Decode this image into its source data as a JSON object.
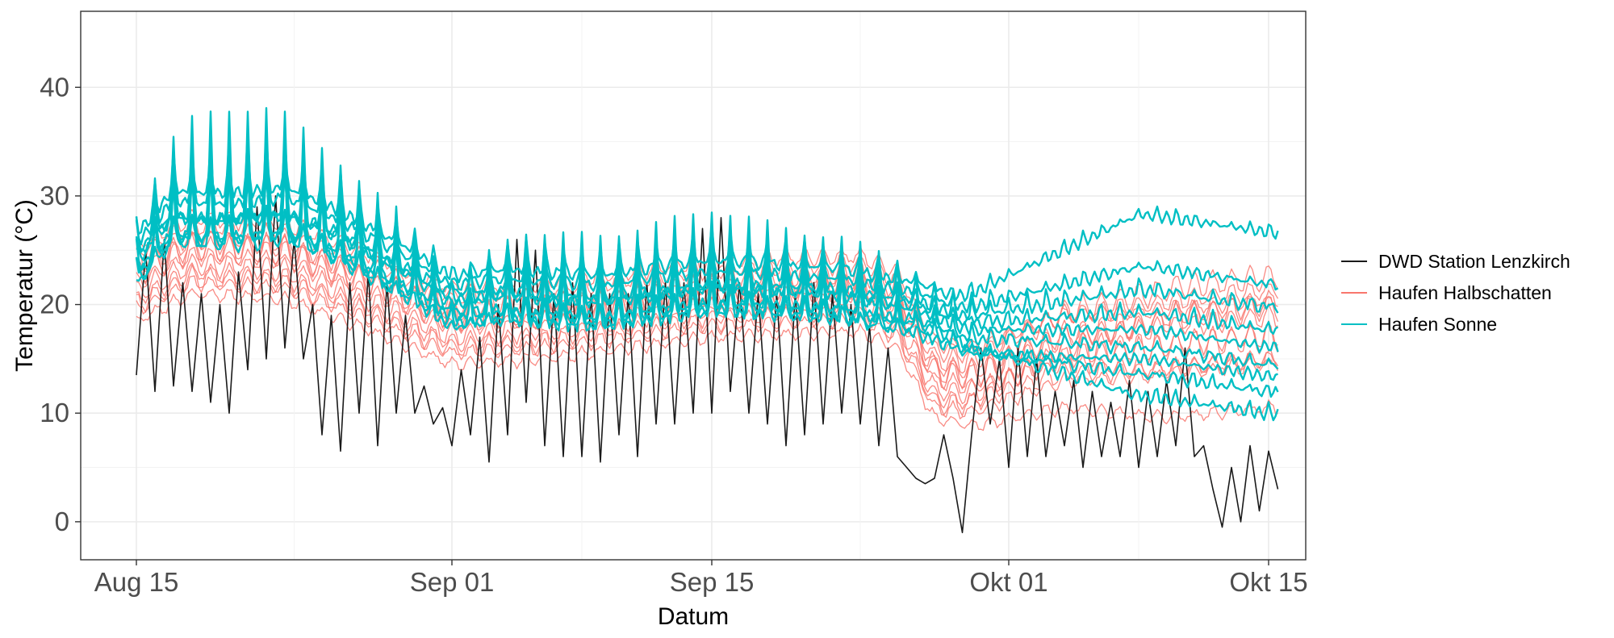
{
  "chart_data": {
    "type": "line",
    "xlabel": "Datum",
    "ylabel": "Temperatur (°C)",
    "x_ticks": [
      {
        "label": "Aug 15",
        "day": 0
      },
      {
        "label": "Sep 01",
        "day": 17
      },
      {
        "label": "Sep 15",
        "day": 31
      },
      {
        "label": "Okt 01",
        "day": 47
      },
      {
        "label": "Okt 15",
        "day": 61
      }
    ],
    "y_ticks": [
      0,
      10,
      20,
      30,
      40
    ],
    "xlim": [
      "Aug 12",
      "Okt 17"
    ],
    "ylim": [
      -3.5,
      47
    ],
    "grid": true,
    "legend_position": "right",
    "colors": {
      "station": "#1a1a1a",
      "halbschatten": "#f8766d",
      "sonne": "#00bfc4"
    },
    "series": [
      {
        "name": "DWD Station Lenzkirch",
        "group": "station",
        "values": [
          [
            0.0,
            13.5
          ],
          [
            0.5,
            25
          ],
          [
            1.0,
            12
          ],
          [
            1.5,
            26
          ],
          [
            2.0,
            12.5
          ],
          [
            2.5,
            22
          ],
          [
            3.0,
            12
          ],
          [
            3.5,
            21
          ],
          [
            4.0,
            11
          ],
          [
            4.5,
            20
          ],
          [
            5.0,
            10
          ],
          [
            5.5,
            23
          ],
          [
            6.0,
            14
          ],
          [
            6.5,
            29
          ],
          [
            7.0,
            15
          ],
          [
            7.5,
            30
          ],
          [
            8.0,
            16
          ],
          [
            8.5,
            26
          ],
          [
            9.0,
            15
          ],
          [
            9.5,
            20
          ],
          [
            10.0,
            8
          ],
          [
            10.5,
            19
          ],
          [
            11.0,
            6.5
          ],
          [
            11.5,
            22
          ],
          [
            12.0,
            10
          ],
          [
            12.5,
            23
          ],
          [
            13.0,
            7
          ],
          [
            13.5,
            22
          ],
          [
            14.0,
            10
          ],
          [
            14.5,
            19
          ],
          [
            15.0,
            10
          ],
          [
            15.5,
            12.5
          ],
          [
            16.0,
            9
          ],
          [
            16.5,
            10.5
          ],
          [
            17.0,
            7
          ],
          [
            17.5,
            14
          ],
          [
            18.0,
            8
          ],
          [
            18.5,
            17
          ],
          [
            19.0,
            5.5
          ],
          [
            19.5,
            20
          ],
          [
            20.0,
            8
          ],
          [
            20.5,
            26
          ],
          [
            21.0,
            11
          ],
          [
            21.5,
            25
          ],
          [
            22.0,
            7
          ],
          [
            22.5,
            21
          ],
          [
            23.0,
            6
          ],
          [
            23.5,
            22
          ],
          [
            24.0,
            6
          ],
          [
            24.5,
            21
          ],
          [
            25.0,
            5.5
          ],
          [
            25.5,
            21
          ],
          [
            26.0,
            8
          ],
          [
            26.5,
            21
          ],
          [
            27.0,
            6
          ],
          [
            27.5,
            22
          ],
          [
            28.0,
            9
          ],
          [
            28.5,
            22
          ],
          [
            29.0,
            9
          ],
          [
            29.5,
            22
          ],
          [
            30.0,
            10
          ],
          [
            30.5,
            27
          ],
          [
            31.0,
            10
          ],
          [
            31.5,
            28
          ],
          [
            32.0,
            12
          ],
          [
            32.5,
            22
          ],
          [
            33.0,
            10
          ],
          [
            33.5,
            21
          ],
          [
            34.0,
            9
          ],
          [
            34.5,
            21
          ],
          [
            35.0,
            7
          ],
          [
            35.5,
            21
          ],
          [
            36.0,
            8
          ],
          [
            36.5,
            22
          ],
          [
            37.0,
            9
          ],
          [
            37.5,
            21
          ],
          [
            38.0,
            10
          ],
          [
            38.5,
            20
          ],
          [
            39.0,
            9
          ],
          [
            39.5,
            18
          ],
          [
            40.0,
            7
          ],
          [
            40.5,
            16
          ],
          [
            41.0,
            6
          ],
          [
            41.5,
            5
          ],
          [
            42.0,
            4
          ],
          [
            42.5,
            3.5
          ],
          [
            43.0,
            4
          ],
          [
            43.5,
            8
          ],
          [
            44.0,
            4
          ],
          [
            44.5,
            -1
          ],
          [
            45.0,
            8
          ],
          [
            45.5,
            16
          ],
          [
            46.0,
            9
          ],
          [
            46.5,
            15
          ],
          [
            47.0,
            5
          ],
          [
            47.5,
            16
          ],
          [
            48.0,
            6
          ],
          [
            48.5,
            15
          ],
          [
            49.0,
            6
          ],
          [
            49.5,
            12
          ],
          [
            50.0,
            7
          ],
          [
            50.5,
            13
          ],
          [
            51.0,
            5
          ],
          [
            51.5,
            12
          ],
          [
            52.0,
            6
          ],
          [
            52.5,
            11
          ],
          [
            53.0,
            6
          ],
          [
            53.5,
            13
          ],
          [
            54.0,
            5
          ],
          [
            54.5,
            12
          ],
          [
            55.0,
            6
          ],
          [
            55.5,
            13
          ],
          [
            56.0,
            7
          ],
          [
            56.5,
            16
          ],
          [
            57.0,
            6
          ],
          [
            57.5,
            7
          ],
          [
            58.0,
            3
          ],
          [
            58.5,
            -0.5
          ],
          [
            59.0,
            5
          ],
          [
            59.5,
            0
          ],
          [
            60.0,
            7
          ],
          [
            60.5,
            1
          ],
          [
            61.0,
            6.5
          ],
          [
            61.5,
            3
          ]
        ]
      },
      {
        "name": "Haufen Halbschatten",
        "group": "halbschatten",
        "offset": -2.5,
        "amp": 0.6,
        "late": 1.0
      },
      {
        "group": "halbschatten",
        "offset": -1.5,
        "amp": 0.8,
        "late": 0.5
      },
      {
        "group": "halbschatten",
        "offset": -0.8,
        "amp": 1.0,
        "late": 2.0
      },
      {
        "group": "halbschatten",
        "offset": 0.0,
        "amp": 0.7,
        "late": -1.0
      },
      {
        "group": "halbschatten",
        "offset": 0.7,
        "amp": 1.2,
        "late": 3.0
      },
      {
        "group": "halbschatten",
        "offset": 1.4,
        "amp": 0.9,
        "late": 1.5
      },
      {
        "group": "halbschatten",
        "offset": 2.0,
        "amp": 1.1,
        "late": 4.5
      },
      {
        "group": "halbschatten",
        "offset": 2.8,
        "amp": 0.8,
        "late": 2.5
      },
      {
        "group": "halbschatten",
        "offset": -3.5,
        "amp": 0.5,
        "late": -2.0
      },
      {
        "group": "halbschatten",
        "offset": 1.0,
        "amp": 1.3,
        "late": 0.0
      },
      {
        "group": "halbschatten",
        "offset": -2.0,
        "amp": 0.9,
        "late": 6.0
      },
      {
        "group": "halbschatten",
        "offset": 3.5,
        "amp": 0.7,
        "late": 1.0
      },
      {
        "name": "Haufen Sonne",
        "group": "sonne",
        "offset": 0.0,
        "amp": 1.0,
        "late": 0.0
      },
      {
        "group": "sonne",
        "offset": 1.2,
        "amp": 0.8,
        "late": 2.0
      },
      {
        "group": "sonne",
        "offset": 2.4,
        "amp": 0.6,
        "late": 5.0
      },
      {
        "group": "sonne",
        "offset": -1.0,
        "amp": 0.9,
        "late": -1.5
      },
      {
        "group": "sonne",
        "offset": 3.2,
        "amp": 0.5,
        "late": 9.0
      },
      {
        "group": "sonne",
        "offset": 0.6,
        "amp": 0.4,
        "late": 1.0
      },
      {
        "group": "sonne",
        "offset": -0.5,
        "amp": 0.7,
        "late": -4.0
      },
      {
        "group": "sonne",
        "offset": 1.8,
        "amp": 1.0,
        "late": 3.5
      },
      {
        "group": "sonne",
        "offset": -1.6,
        "amp": 0.3,
        "late": 0.5
      }
    ],
    "legend": [
      "DWD Station Lenzkirch",
      "Haufen Halbschatten",
      "Haufen Sonne"
    ]
  }
}
